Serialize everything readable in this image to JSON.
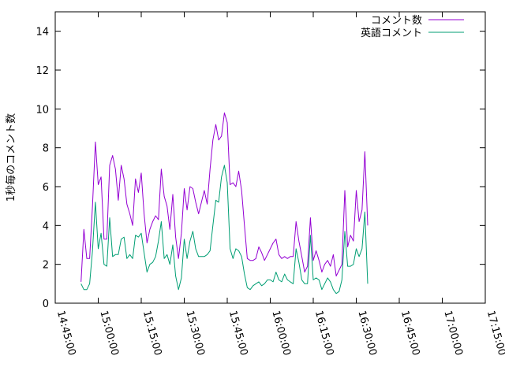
{
  "chart_data": {
    "type": "line",
    "title": "",
    "xlabel": "",
    "ylabel": "1秒毎のコメント数",
    "ylim": [
      0,
      15
    ],
    "yticks": [
      0,
      2,
      4,
      6,
      8,
      10,
      12,
      14
    ],
    "xlim": [
      "14:45:00",
      "17:15:00"
    ],
    "xtick_labels": [
      "14:45:00",
      "15:00:00",
      "15:15:00",
      "15:30:00",
      "15:45:00",
      "16:00:00",
      "16:15:00",
      "16:30:00",
      "16:45:00",
      "17:00:00",
      "17:15:00"
    ],
    "legend_position": "top-right",
    "series": [
      {
        "name": "コメント数",
        "color": "#9400d3",
        "points": [
          [
            "14:54:00",
            1.1
          ],
          [
            "14:55:00",
            3.8
          ],
          [
            "14:56:00",
            2.3
          ],
          [
            "14:57:00",
            2.3
          ],
          [
            "14:58:00",
            5.0
          ],
          [
            "14:59:00",
            8.3
          ],
          [
            "15:00:00",
            6.1
          ],
          [
            "15:01:00",
            6.5
          ],
          [
            "15:02:00",
            3.3
          ],
          [
            "15:03:00",
            3.3
          ],
          [
            "15:04:00",
            7.1
          ],
          [
            "15:05:00",
            7.6
          ],
          [
            "15:06:00",
            6.9
          ],
          [
            "15:07:00",
            5.3
          ],
          [
            "15:08:00",
            7.1
          ],
          [
            "15:09:00",
            6.4
          ],
          [
            "15:10:00",
            5.1
          ],
          [
            "15:11:00",
            4.6
          ],
          [
            "15:12:00",
            4.0
          ],
          [
            "15:13:00",
            6.4
          ],
          [
            "15:14:00",
            5.7
          ],
          [
            "15:15:00",
            6.7
          ],
          [
            "15:16:00",
            4.6
          ],
          [
            "15:17:00",
            3.1
          ],
          [
            "15:18:00",
            3.8
          ],
          [
            "15:19:00",
            4.2
          ],
          [
            "15:20:00",
            4.5
          ],
          [
            "15:21:00",
            4.3
          ],
          [
            "15:22:00",
            6.9
          ],
          [
            "15:23:00",
            5.5
          ],
          [
            "15:24:00",
            5.0
          ],
          [
            "15:25:00",
            3.8
          ],
          [
            "15:26:00",
            5.6
          ],
          [
            "15:27:00",
            3.4
          ],
          [
            "15:28:00",
            2.3
          ],
          [
            "15:29:00",
            3.6
          ],
          [
            "15:30:00",
            5.9
          ],
          [
            "15:31:00",
            4.8
          ],
          [
            "15:32:00",
            6.0
          ],
          [
            "15:33:00",
            5.9
          ],
          [
            "15:34:00",
            5.2
          ],
          [
            "15:35:00",
            4.6
          ],
          [
            "15:36:00",
            5.2
          ],
          [
            "15:37:00",
            5.8
          ],
          [
            "15:38:00",
            5.1
          ],
          [
            "15:39:00",
            6.9
          ],
          [
            "15:40:00",
            8.4
          ],
          [
            "15:41:00",
            9.2
          ],
          [
            "15:42:00",
            8.4
          ],
          [
            "15:43:00",
            8.6
          ],
          [
            "15:44:00",
            9.8
          ],
          [
            "15:45:00",
            9.3
          ],
          [
            "15:46:00",
            6.1
          ],
          [
            "15:47:00",
            6.2
          ],
          [
            "15:48:00",
            6.0
          ],
          [
            "15:49:00",
            6.8
          ],
          [
            "15:50:00",
            5.8
          ],
          [
            "15:51:00",
            4.0
          ],
          [
            "15:52:00",
            2.3
          ],
          [
            "15:53:00",
            2.2
          ],
          [
            "15:54:00",
            2.2
          ],
          [
            "15:55:00",
            2.3
          ],
          [
            "15:56:00",
            2.9
          ],
          [
            "15:57:00",
            2.6
          ],
          [
            "15:58:00",
            2.2
          ],
          [
            "15:59:00",
            2.5
          ],
          [
            "16:00:00",
            2.8
          ],
          [
            "16:01:00",
            3.1
          ],
          [
            "16:02:00",
            3.3
          ],
          [
            "16:03:00",
            2.5
          ],
          [
            "16:04:00",
            2.3
          ],
          [
            "16:05:00",
            2.4
          ],
          [
            "16:06:00",
            2.3
          ],
          [
            "16:07:00",
            2.4
          ],
          [
            "16:08:00",
            2.4
          ],
          [
            "16:09:00",
            4.2
          ],
          [
            "16:10:00",
            3.2
          ],
          [
            "16:11:00",
            2.4
          ],
          [
            "16:12:00",
            1.6
          ],
          [
            "16:13:00",
            1.9
          ],
          [
            "16:14:00",
            4.4
          ],
          [
            "16:15:00",
            2.2
          ],
          [
            "16:16:00",
            2.7
          ],
          [
            "16:17:00",
            2.2
          ],
          [
            "16:18:00",
            1.6
          ],
          [
            "16:19:00",
            2.0
          ],
          [
            "16:20:00",
            2.2
          ],
          [
            "16:21:00",
            1.9
          ],
          [
            "16:22:00",
            2.5
          ],
          [
            "16:23:00",
            1.4
          ],
          [
            "16:24:00",
            1.7
          ],
          [
            "16:25:00",
            2.0
          ],
          [
            "16:26:00",
            5.8
          ],
          [
            "16:27:00",
            2.9
          ],
          [
            "16:28:00",
            3.5
          ],
          [
            "16:29:00",
            3.2
          ],
          [
            "16:30:00",
            5.8
          ],
          [
            "16:31:00",
            4.2
          ],
          [
            "16:32:00",
            4.8
          ],
          [
            "16:33:00",
            7.8
          ],
          [
            "16:34:00",
            4.0
          ]
        ]
      },
      {
        "name": "英語コメント",
        "color": "#009e73",
        "points": [
          [
            "14:54:00",
            1.0
          ],
          [
            "14:55:00",
            0.7
          ],
          [
            "14:56:00",
            0.7
          ],
          [
            "14:57:00",
            1.0
          ],
          [
            "14:58:00",
            2.7
          ],
          [
            "14:59:00",
            5.2
          ],
          [
            "15:00:00",
            2.8
          ],
          [
            "15:01:00",
            3.6
          ],
          [
            "15:02:00",
            2.0
          ],
          [
            "15:03:00",
            1.9
          ],
          [
            "15:04:00",
            4.4
          ],
          [
            "15:05:00",
            2.4
          ],
          [
            "15:06:00",
            2.5
          ],
          [
            "15:07:00",
            2.5
          ],
          [
            "15:08:00",
            3.3
          ],
          [
            "15:09:00",
            3.4
          ],
          [
            "15:10:00",
            2.3
          ],
          [
            "15:11:00",
            2.5
          ],
          [
            "15:12:00",
            2.3
          ],
          [
            "15:13:00",
            3.5
          ],
          [
            "15:14:00",
            3.4
          ],
          [
            "15:15:00",
            3.6
          ],
          [
            "15:16:00",
            2.6
          ],
          [
            "15:17:00",
            1.6
          ],
          [
            "15:18:00",
            2.0
          ],
          [
            "15:19:00",
            2.1
          ],
          [
            "15:20:00",
            2.4
          ],
          [
            "15:21:00",
            3.2
          ],
          [
            "15:22:00",
            4.2
          ],
          [
            "15:23:00",
            2.3
          ],
          [
            "15:24:00",
            2.5
          ],
          [
            "15:25:00",
            2.0
          ],
          [
            "15:26:00",
            3.0
          ],
          [
            "15:27:00",
            1.4
          ],
          [
            "15:28:00",
            0.7
          ],
          [
            "15:29:00",
            1.3
          ],
          [
            "15:30:00",
            3.3
          ],
          [
            "15:31:00",
            2.3
          ],
          [
            "15:32:00",
            3.2
          ],
          [
            "15:33:00",
            3.7
          ],
          [
            "15:34:00",
            2.8
          ],
          [
            "15:35:00",
            2.4
          ],
          [
            "15:36:00",
            2.4
          ],
          [
            "15:37:00",
            2.4
          ],
          [
            "15:38:00",
            2.5
          ],
          [
            "15:39:00",
            2.7
          ],
          [
            "15:40:00",
            4.0
          ],
          [
            "15:41:00",
            5.3
          ],
          [
            "15:42:00",
            5.2
          ],
          [
            "15:43:00",
            6.5
          ],
          [
            "15:44:00",
            7.1
          ],
          [
            "15:45:00",
            6.2
          ],
          [
            "15:46:00",
            2.8
          ],
          [
            "15:47:00",
            2.3
          ],
          [
            "15:48:00",
            2.8
          ],
          [
            "15:49:00",
            2.7
          ],
          [
            "15:50:00",
            2.4
          ],
          [
            "15:51:00",
            1.5
          ],
          [
            "15:52:00",
            0.8
          ],
          [
            "15:53:00",
            0.7
          ],
          [
            "15:54:00",
            0.9
          ],
          [
            "15:55:00",
            1.0
          ],
          [
            "15:56:00",
            1.1
          ],
          [
            "15:57:00",
            0.9
          ],
          [
            "15:58:00",
            1.0
          ],
          [
            "15:59:00",
            1.2
          ],
          [
            "16:00:00",
            1.2
          ],
          [
            "16:01:00",
            1.1
          ],
          [
            "16:02:00",
            1.6
          ],
          [
            "16:03:00",
            1.2
          ],
          [
            "16:04:00",
            1.1
          ],
          [
            "16:05:00",
            1.5
          ],
          [
            "16:06:00",
            1.2
          ],
          [
            "16:07:00",
            1.1
          ],
          [
            "16:08:00",
            1.0
          ],
          [
            "16:09:00",
            2.8
          ],
          [
            "16:10:00",
            2.1
          ],
          [
            "16:11:00",
            1.2
          ],
          [
            "16:12:00",
            1.0
          ],
          [
            "16:13:00",
            1.0
          ],
          [
            "16:14:00",
            3.5
          ],
          [
            "16:15:00",
            1.2
          ],
          [
            "16:16:00",
            1.3
          ],
          [
            "16:17:00",
            1.2
          ],
          [
            "16:18:00",
            0.7
          ],
          [
            "16:19:00",
            1.0
          ],
          [
            "16:20:00",
            1.3
          ],
          [
            "16:21:00",
            1.1
          ],
          [
            "16:22:00",
            0.7
          ],
          [
            "16:23:00",
            0.5
          ],
          [
            "16:24:00",
            0.6
          ],
          [
            "16:25:00",
            1.2
          ],
          [
            "16:26:00",
            3.7
          ],
          [
            "16:27:00",
            1.9
          ],
          [
            "16:28:00",
            1.9
          ],
          [
            "16:29:00",
            2.0
          ],
          [
            "16:30:00",
            2.8
          ],
          [
            "16:31:00",
            2.4
          ],
          [
            "16:32:00",
            2.8
          ],
          [
            "16:33:00",
            4.7
          ],
          [
            "16:34:00",
            1.0
          ]
        ]
      }
    ]
  }
}
